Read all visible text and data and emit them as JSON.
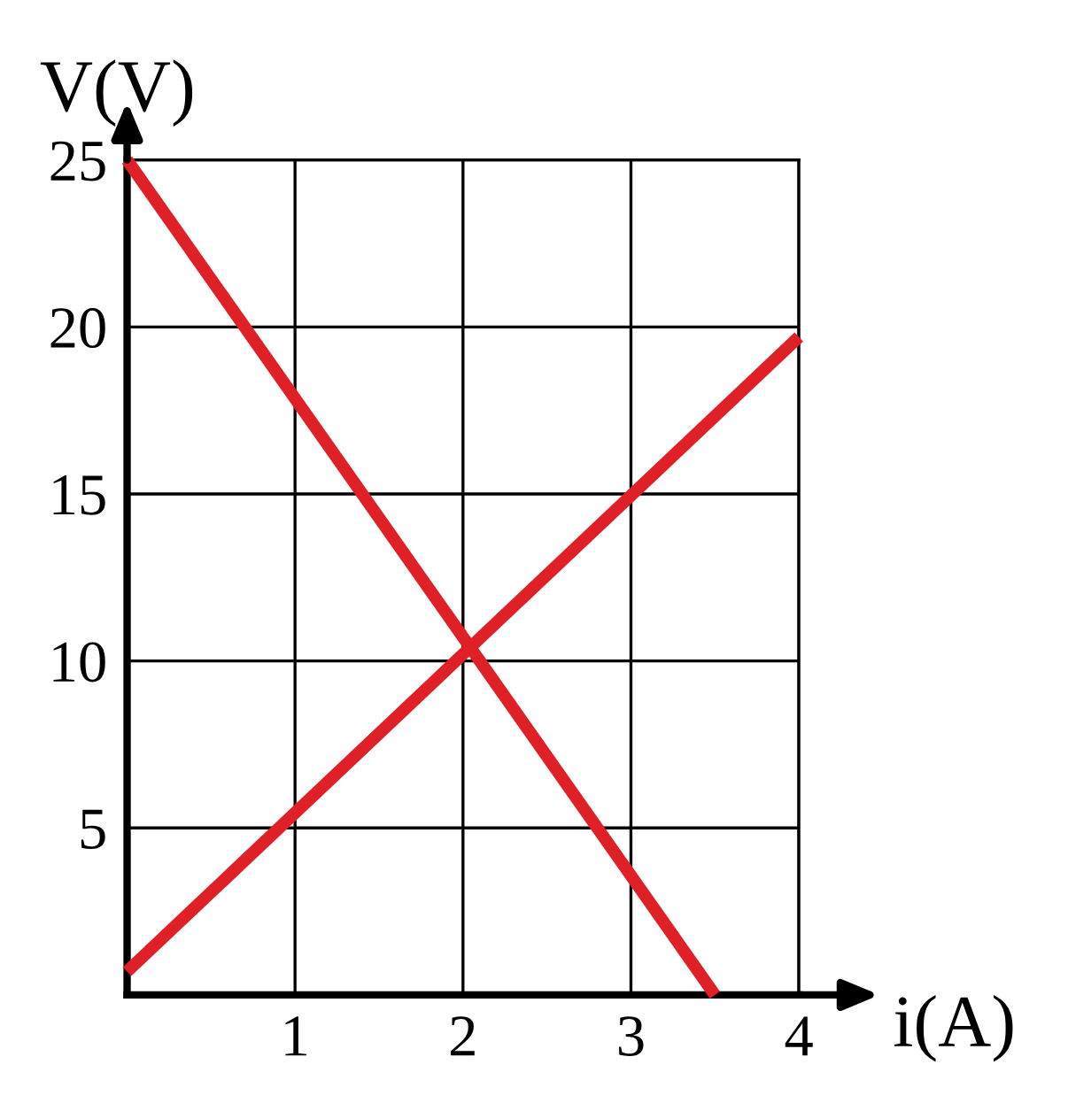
{
  "chart_data": {
    "type": "line",
    "xlabel": "i(A)",
    "ylabel": "V(V)",
    "series": [
      {
        "color": "#e02027",
        "x": [
          0,
          3.5
        ],
        "values": [
          25,
          0
        ]
      },
      {
        "color": "#e02027",
        "x": [
          0,
          4
        ],
        "values": [
          0.7,
          19.7
        ]
      }
    ],
    "xlim": [
      0,
      4
    ],
    "ylim": [
      0,
      25
    ],
    "xticks": [
      1,
      2,
      3,
      4
    ],
    "yticks": [
      5,
      10,
      15,
      20,
      25
    ],
    "grid": true
  }
}
